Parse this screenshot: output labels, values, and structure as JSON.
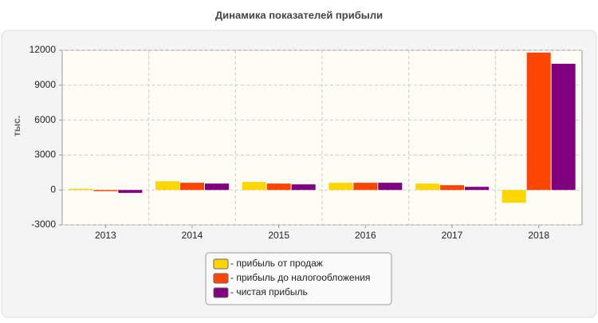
{
  "chart_data": {
    "type": "bar",
    "title": "Динамика показателей прибыли",
    "y_label": "тыс.",
    "categories": [
      "2013",
      "2014",
      "2015",
      "2016",
      "2017",
      "2018"
    ],
    "series": [
      {
        "name": "- прибыль от продаж",
        "color": "#ffd700",
        "values": [
          100,
          750,
          690,
          620,
          550,
          -1100
        ]
      },
      {
        "name": "- прибыль до налогообложения",
        "color": "#ff4500",
        "values": [
          -100,
          620,
          550,
          620,
          410,
          11800
        ]
      },
      {
        "name": "- чистая прибыль",
        "color": "#800080",
        "values": [
          -250,
          550,
          480,
          620,
          270,
          10840
        ]
      }
    ],
    "ylim": [
      -3000,
      12000
    ],
    "yticks": [
      -3000,
      0,
      3000,
      6000,
      9000,
      12000
    ],
    "grid": true
  }
}
